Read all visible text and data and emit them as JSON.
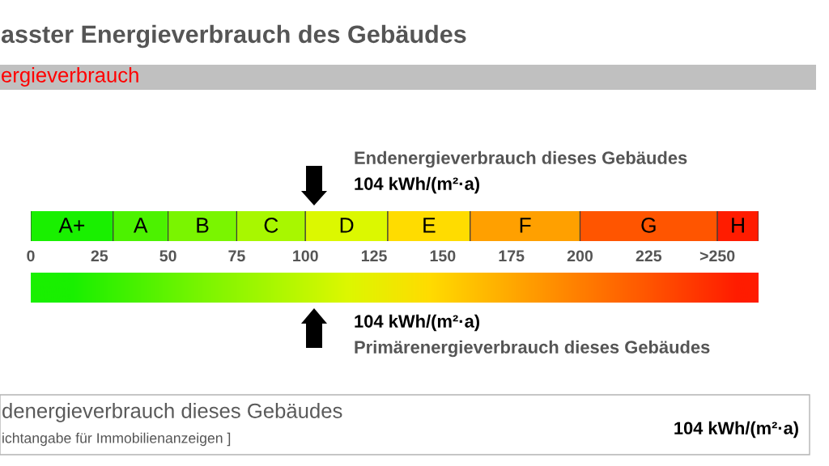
{
  "chart_data": {
    "type": "bar",
    "orientation": "horizontal",
    "stacked": true,
    "title": "asster Energieverbrauch des Gebäudes",
    "subtitle": "ergieverbrauch",
    "categories": [
      null
    ],
    "series": [
      {
        "name": "A+",
        "color": "#19f000",
        "values": [
          30
        ]
      },
      {
        "name": "A",
        "color": "#4cf200",
        "values": [
          20
        ]
      },
      {
        "name": "B",
        "color": "#7af500",
        "values": [
          25
        ]
      },
      {
        "name": "C",
        "color": "#a8f700",
        "values": [
          25
        ]
      },
      {
        "name": "D",
        "color": "#dcf800",
        "values": [
          30
        ]
      },
      {
        "name": "E",
        "color": "#ffdc00",
        "values": [
          30
        ]
      },
      {
        "name": "F",
        "color": "#ffa000",
        "values": [
          40
        ]
      },
      {
        "name": "G",
        "color": "#ff5500",
        "values": [
          50
        ]
      },
      {
        "name": "H",
        "color": "#ff1c00",
        "values": [
          15
        ]
      }
    ],
    "xlim": [
      0,
      265
    ],
    "xticks": [
      0,
      25,
      50,
      75,
      100,
      125,
      150,
      175,
      200,
      225,
      {
        "value": 250,
        "label": ">250"
      }
    ],
    "annotations": [
      "Endenergieverbrauch dieses Gebäudes",
      "104 kWh/(m²·a)",
      "104 kWh/(m²·a)",
      "Primärenergieverbrauch dieses Gebäudes",
      "denergieverbrauch dieses Gebäudes",
      "ichtangabe für Immobilienanzeigen ]",
      "104 kWh/(m²·a)"
    ]
  }
}
